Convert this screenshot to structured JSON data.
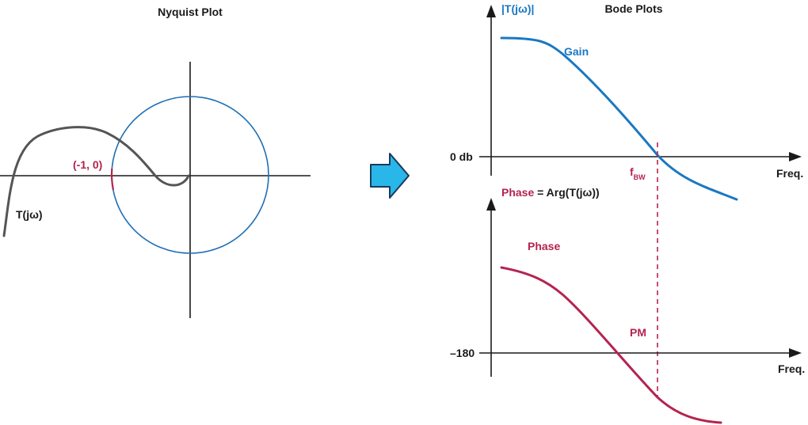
{
  "nyquist": {
    "title": "Nyquist Plot",
    "point_label": "(-1, 0)",
    "curve_label": "T(jω)"
  },
  "bode": {
    "title": "Bode Plots",
    "gain_axis_label": "|T(jω)|",
    "gain_label": "Gain",
    "zero_db_label": "0 db",
    "bw_label_main": "f",
    "bw_label_sub": "BW",
    "freq_label_top": "Freq.",
    "phase_axis_label_colored": "Phase",
    "phase_axis_label_rest": " = Arg(T(jω))",
    "phase_label": "Phase",
    "pm_label": "PM",
    "minus180_label": "–180",
    "freq_label_bottom": "Freq."
  },
  "colors": {
    "axis": "#1a1a1a",
    "nyquist_curve": "#555555",
    "unit_circle": "#1f6fb5",
    "critical_point": "#b5234f",
    "gain": "#1a78c2",
    "phase": "#b5234f",
    "arrow_fill": "#29b6e8",
    "arrow_stroke": "#1a3a5c"
  }
}
